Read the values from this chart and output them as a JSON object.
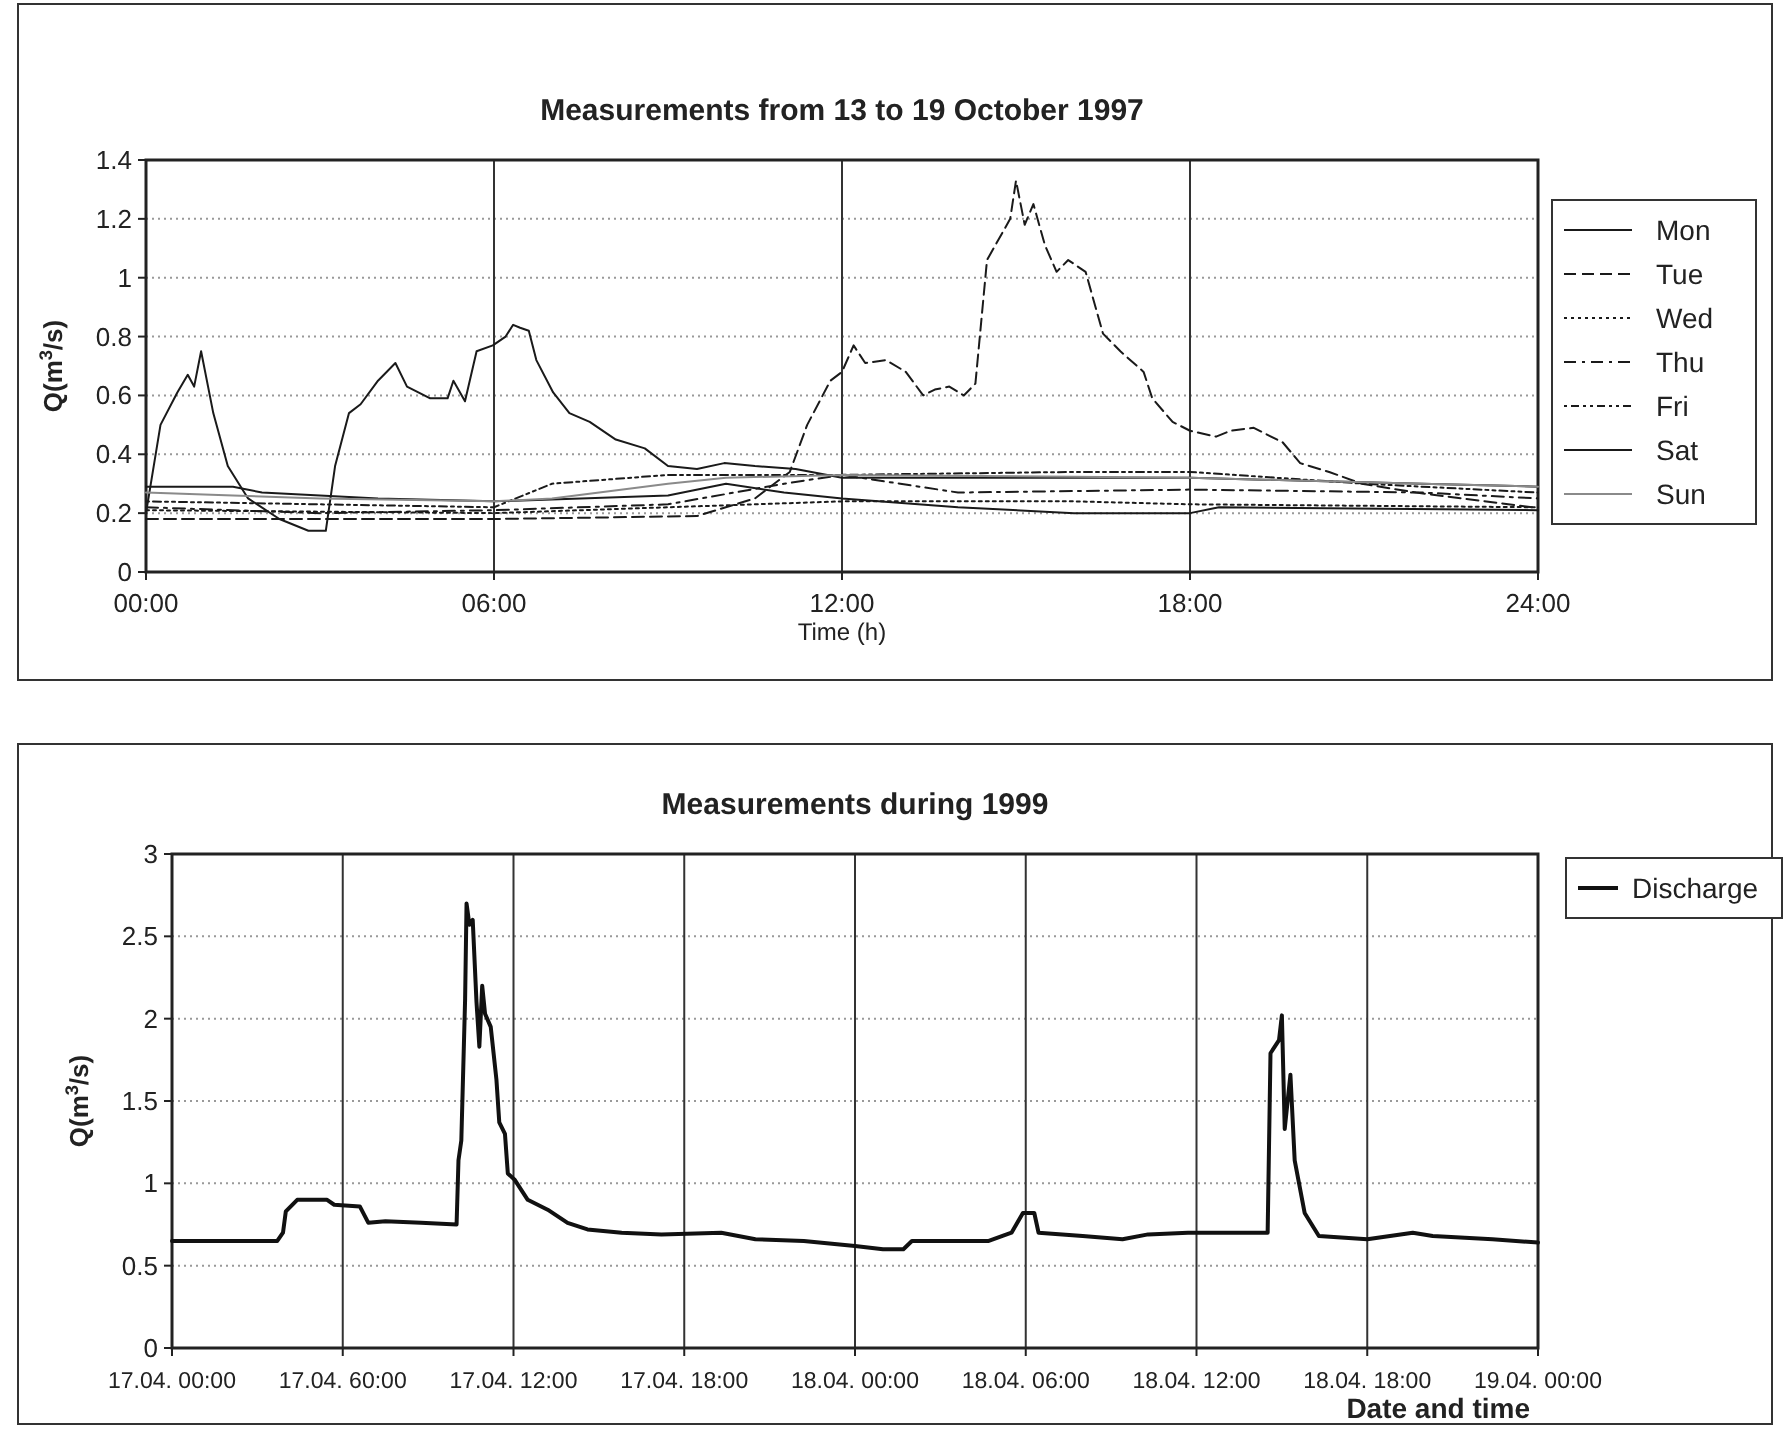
{
  "chart_data": [
    {
      "type": "line",
      "title": "Measurements from 13  to 19 October 1997",
      "xlabel": "Time (h)",
      "ylabel": "Q(m$^{3}$/s)",
      "xlim": [
        0,
        24
      ],
      "xticks": [
        {
          "value": 0,
          "label": "00:00"
        },
        {
          "value": 6,
          "label": "06:00"
        },
        {
          "value": 12,
          "label": "12:00"
        },
        {
          "value": 18,
          "label": "18:00"
        },
        {
          "value": 24,
          "label": "24:00"
        }
      ],
      "ylim": [
        0,
        1.4
      ],
      "yticks": [
        0,
        0.2,
        0.4,
        0.6,
        0.8,
        1,
        1.2,
        1.4
      ],
      "grid": true,
      "legend": "right",
      "marker": "none",
      "series": [
        {
          "name": "Mon",
          "color": "#1a1a1a",
          "line_style": "solid",
          "x": [
            0,
            0.25,
            0.54,
            0.72,
            0.83,
            0.95,
            1.16,
            1.41,
            1.76,
            2.3,
            2.8,
            3.1,
            3.26,
            3.5,
            3.7,
            4.0,
            4.3,
            4.5,
            4.9,
            5.2,
            5.3,
            5.5,
            5.7,
            5.98,
            6.2,
            6.33,
            6.45,
            6.6,
            6.73,
            7.02,
            7.3,
            7.65,
            8.1,
            8.6,
            9.0,
            9.5,
            9.97,
            10.5,
            11.2,
            12.0,
            14,
            16,
            18,
            20,
            22,
            24
          ],
          "values": [
            0.2,
            0.5,
            0.61,
            0.67,
            0.63,
            0.75,
            0.54,
            0.36,
            0.25,
            0.18,
            0.14,
            0.14,
            0.36,
            0.54,
            0.57,
            0.65,
            0.71,
            0.63,
            0.59,
            0.59,
            0.65,
            0.58,
            0.75,
            0.77,
            0.8,
            0.84,
            0.83,
            0.82,
            0.72,
            0.61,
            0.54,
            0.51,
            0.45,
            0.42,
            0.36,
            0.35,
            0.37,
            0.36,
            0.35,
            0.32,
            0.32,
            0.32,
            0.32,
            0.31,
            0.3,
            0.29
          ]
        },
        {
          "name": "Tue",
          "color": "#1a1a1a",
          "line_style": "dashed",
          "x": [
            0,
            3,
            6,
            9.5,
            10.5,
            11.1,
            11.4,
            11.8,
            12.0,
            12.2,
            12.4,
            12.76,
            13.1,
            13.4,
            13.6,
            13.85,
            14.1,
            14.3,
            14.5,
            14.9,
            15.0,
            15.15,
            15.3,
            15.5,
            15.7,
            15.9,
            16.2,
            16.5,
            16.8,
            17.2,
            17.35,
            17.7,
            18.0,
            18.45,
            18.7,
            19.1,
            19.6,
            19.9,
            20.4,
            20.96,
            21.9,
            22.7,
            23.9,
            24
          ],
          "values": [
            0.18,
            0.18,
            0.18,
            0.19,
            0.25,
            0.34,
            0.5,
            0.65,
            0.68,
            0.77,
            0.71,
            0.72,
            0.68,
            0.6,
            0.62,
            0.63,
            0.6,
            0.64,
            1.06,
            1.2,
            1.33,
            1.18,
            1.25,
            1.11,
            1.02,
            1.06,
            1.02,
            0.81,
            0.75,
            0.68,
            0.59,
            0.51,
            0.48,
            0.46,
            0.48,
            0.49,
            0.44,
            0.37,
            0.34,
            0.3,
            0.27,
            0.25,
            0.22,
            0.22
          ]
        },
        {
          "name": "Wed",
          "color": "#1a1a1a",
          "line_style": "dotted",
          "x": [
            0,
            6,
            9,
            12,
            16,
            18,
            24
          ],
          "values": [
            0.21,
            0.2,
            0.22,
            0.24,
            0.24,
            0.23,
            0.22
          ]
        },
        {
          "name": "Thu",
          "color": "#1a1a1a",
          "line_style": "dashdot",
          "x": [
            0,
            3,
            6,
            9,
            11,
            12,
            14,
            18,
            22,
            24
          ],
          "values": [
            0.22,
            0.2,
            0.21,
            0.23,
            0.3,
            0.33,
            0.27,
            0.28,
            0.27,
            0.25
          ]
        },
        {
          "name": "Fri",
          "color": "#1a1a1a",
          "line_style": "dashdotdot",
          "x": [
            0,
            6,
            7,
            9,
            12,
            16,
            18,
            21,
            24
          ],
          "values": [
            0.24,
            0.22,
            0.3,
            0.33,
            0.33,
            0.34,
            0.34,
            0.3,
            0.27
          ]
        },
        {
          "name": "Sat",
          "color": "#1a1a1a",
          "line_style": "solid",
          "x": [
            0,
            1.5,
            2,
            4,
            6,
            9,
            10,
            11,
            12,
            14,
            16,
            18,
            18.5,
            24
          ],
          "values": [
            0.29,
            0.29,
            0.27,
            0.25,
            0.24,
            0.26,
            0.3,
            0.27,
            0.25,
            0.22,
            0.2,
            0.2,
            0.22,
            0.21
          ]
        },
        {
          "name": "Sun",
          "color": "#8a8a8a",
          "line_style": "solid",
          "x": [
            0,
            1.5,
            3,
            6,
            7,
            9,
            10,
            12,
            18,
            22,
            24
          ],
          "values": [
            0.27,
            0.26,
            0.25,
            0.24,
            0.25,
            0.3,
            0.32,
            0.33,
            0.32,
            0.3,
            0.29
          ]
        }
      ]
    },
    {
      "type": "line",
      "title": "Measurements during 1999",
      "xlabel": "Date and time",
      "ylabel": "Q(m$^{3}$/s)",
      "xlim": [
        "1999-04-17T00:00",
        "1999-04-19T00:00"
      ],
      "xticks": [
        {
          "value": "1999-04-17T00:00",
          "label": "17.04. 00:00"
        },
        {
          "value": "1999-04-17T06:00",
          "label": "17.04. 60:00"
        },
        {
          "value": "1999-04-17T12:00",
          "label": "17.04. 12:00"
        },
        {
          "value": "1999-04-17T18:00",
          "label": "17.04. 18:00"
        },
        {
          "value": "1999-04-18T00:00",
          "label": "18.04. 00:00"
        },
        {
          "value": "1999-04-18T06:00",
          "label": "18.04. 06:00"
        },
        {
          "value": "1999-04-18T12:00",
          "label": "18.04. 12:00"
        },
        {
          "value": "1999-04-18T18:00",
          "label": "18.04. 18:00"
        },
        {
          "value": "1999-04-19T00:00",
          "label": "19.04. 00:00"
        }
      ],
      "ylim": [
        0,
        3
      ],
      "yticks": [
        0,
        0.5,
        1,
        1.5,
        2,
        2.5,
        3
      ],
      "grid": true,
      "legend": "top right",
      "marker": "none",
      "series": [
        {
          "name": "Discharge",
          "color": "#111111",
          "line_style": "solid",
          "x": [
            "1999-04-17T00:00",
            "1999-04-17T03:42",
            "1999-04-17T03:54",
            "1999-04-17T04:00",
            "1999-04-17T04:24",
            "1999-04-17T05:27",
            "1999-04-17T05:42",
            "1999-04-17T06:36",
            "1999-04-17T06:54",
            "1999-04-17T07:30",
            "1999-04-17T08:45",
            "1999-04-17T10:00",
            "1999-04-17T10:04",
            "1999-04-17T10:10",
            "1999-04-17T10:18",
            "1999-04-17T10:21",
            "1999-04-17T10:27",
            "1999-04-17T10:34",
            "1999-04-17T10:42",
            "1999-04-17T10:48",
            "1999-04-17T10:54",
            "1999-04-17T11:00",
            "1999-04-17T11:12",
            "1999-04-17T11:18",
            "1999-04-17T11:24",
            "1999-04-17T11:30",
            "1999-04-17T11:42",
            "1999-04-17T11:48",
            "1999-04-17T12:03",
            "1999-04-17T12:30",
            "1999-04-17T13:12",
            "1999-04-17T13:54",
            "1999-04-17T14:36",
            "1999-04-17T15:48",
            "1999-04-17T17:12",
            "1999-04-17T19:18",
            "1999-04-17T20:30",
            "1999-04-17T22:12",
            "1999-04-18T00:00",
            "1999-04-18T00:59",
            "1999-04-18T01:42",
            "1999-04-18T02:00",
            "1999-04-18T04:42",
            "1999-04-18T05:30",
            "1999-04-18T05:54",
            "1999-04-18T06:18",
            "1999-04-18T06:27",
            "1999-04-18T08:00",
            "1999-04-18T09:24",
            "1999-04-18T10:18",
            "1999-04-18T11:42",
            "1999-04-18T13:36",
            "1999-04-18T14:30",
            "1999-04-18T14:36",
            "1999-04-18T14:54",
            "1999-04-18T15:00",
            "1999-04-18T15:06",
            "1999-04-18T15:18",
            "1999-04-18T15:27",
            "1999-04-18T15:48",
            "1999-04-18T16:18",
            "1999-04-18T18:00",
            "1999-04-18T19:36",
            "1999-04-18T20:18",
            "1999-04-18T22:24",
            "1999-04-19T00:00"
          ],
          "values": [
            0.65,
            0.65,
            0.7,
            0.83,
            0.9,
            0.9,
            0.87,
            0.86,
            0.76,
            0.77,
            0.76,
            0.75,
            1.14,
            1.26,
            2.12,
            2.7,
            2.57,
            2.6,
            2.1,
            1.83,
            2.2,
            2.03,
            1.95,
            1.79,
            1.63,
            1.37,
            1.3,
            1.06,
            1.02,
            0.9,
            0.84,
            0.76,
            0.72,
            0.7,
            0.69,
            0.7,
            0.66,
            0.65,
            0.62,
            0.6,
            0.6,
            0.65,
            0.65,
            0.7,
            0.82,
            0.82,
            0.7,
            0.68,
            0.66,
            0.69,
            0.7,
            0.7,
            0.7,
            1.79,
            1.87,
            2.02,
            1.33,
            1.66,
            1.14,
            0.82,
            0.68,
            0.66,
            0.7,
            0.68,
            0.66,
            0.64
          ]
        }
      ]
    }
  ]
}
